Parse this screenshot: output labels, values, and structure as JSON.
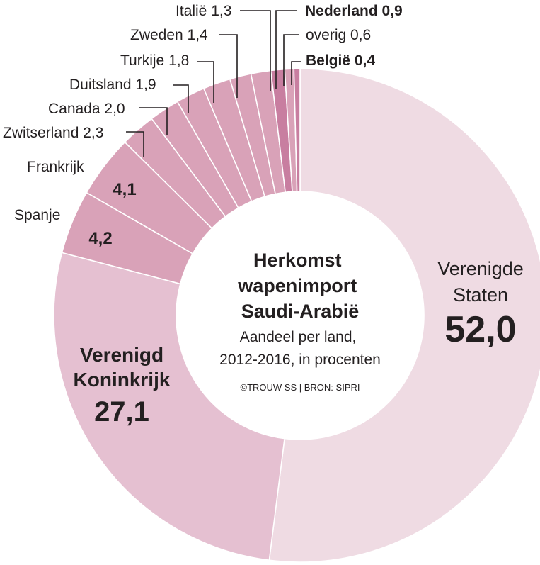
{
  "chart_data": {
    "type": "pie",
    "variant": "donut",
    "title": "Herkomst wapenimport Saudi-Arabië",
    "subtitle": "Aandeel per land, 2012-2016, in procenten",
    "credit": "©TROUW SS | BRON: SIPRI",
    "slices": [
      {
        "name": "Verenigde Staten",
        "label_lines": [
          "Verenigde",
          "Staten"
        ],
        "value": 52.0,
        "value_label": "52,0",
        "color": "#efdbe3"
      },
      {
        "name": "Verenigd Koninkrijk",
        "label_lines": [
          "Verenigd",
          "Koninkrijk"
        ],
        "value": 27.1,
        "value_label": "27,1",
        "color": "#e5c0d1"
      },
      {
        "name": "Spanje",
        "label_lines": [
          "Spanje"
        ],
        "value": 4.2,
        "value_label": "4,2",
        "color": "#d9a2b8"
      },
      {
        "name": "Frankrijk",
        "label_lines": [
          "Frankrijk"
        ],
        "value": 4.1,
        "value_label": "4,1",
        "color": "#d9a2b8"
      },
      {
        "name": "Zwitserland",
        "label_lines": [
          "Zwitserland 2,3"
        ],
        "value": 2.3,
        "value_label": "2,3",
        "color": "#d9a2b8"
      },
      {
        "name": "Canada",
        "label_lines": [
          "Canada 2,0"
        ],
        "value": 2.0,
        "value_label": "2,0",
        "color": "#d9a2b8"
      },
      {
        "name": "Duitsland",
        "label_lines": [
          "Duitsland 1,9"
        ],
        "value": 1.9,
        "value_label": "1,9",
        "color": "#d9a2b8"
      },
      {
        "name": "Turkije",
        "label_lines": [
          "Turkije 1,8"
        ],
        "value": 1.8,
        "value_label": "1,8",
        "color": "#d9a2b8"
      },
      {
        "name": "Zweden",
        "label_lines": [
          "Zweden 1,4"
        ],
        "value": 1.4,
        "value_label": "1,4",
        "color": "#d9a2b8"
      },
      {
        "name": "Italië",
        "label_lines": [
          "Italië 1,3"
        ],
        "value": 1.3,
        "value_label": "1,3",
        "color": "#d9a2b8"
      },
      {
        "name": "Nederland",
        "label_lines": [
          "Nederland 0,9"
        ],
        "value": 0.9,
        "value_label": "0,9",
        "color": "#c87ea0",
        "bold": true
      },
      {
        "name": "overig",
        "label_lines": [
          "overig 0,6"
        ],
        "value": 0.6,
        "value_label": "0,6",
        "color": "#d9a2b8"
      },
      {
        "name": "België",
        "label_lines": [
          "België 0,4"
        ],
        "value": 0.4,
        "value_label": "0,4",
        "color": "#c87ea0",
        "bold": true
      }
    ]
  }
}
